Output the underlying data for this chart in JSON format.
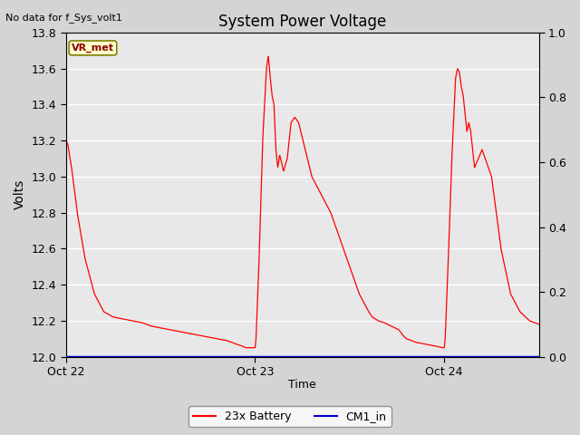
{
  "title": "System Power Voltage",
  "xlabel": "Time",
  "ylabel": "Volts",
  "top_left_text": "No data for f_Sys_volt1",
  "annotation_text": "VR_met",
  "ylim_left": [
    12.0,
    13.8
  ],
  "ylim_right": [
    0.0,
    1.0
  ],
  "yticks_left": [
    12.0,
    12.2,
    12.4,
    12.6,
    12.8,
    13.0,
    13.2,
    13.4,
    13.6,
    13.8
  ],
  "yticks_right": [
    0.0,
    0.2,
    0.4,
    0.6,
    0.8,
    1.0
  ],
  "xtick_labels": [
    "Oct 22",
    "Oct 23",
    "Oct 24"
  ],
  "xtick_pos": [
    0,
    1,
    2
  ],
  "xlim": [
    0,
    2.5
  ],
  "fig_bg_color": "#d4d4d4",
  "plot_bg_color": "#e8e8e8",
  "grid_color": "#ffffff",
  "line_color_battery": "#ff0000",
  "line_color_cm1": "#0000cc",
  "legend_battery": "23x Battery",
  "legend_cm1": "CM1_in",
  "figsize": [
    6.4,
    4.8
  ],
  "dpi": 100,
  "t_points": [
    0.0,
    0.01,
    0.03,
    0.06,
    0.1,
    0.15,
    0.2,
    0.25,
    0.3,
    0.35,
    0.4,
    0.45,
    0.5,
    0.55,
    0.6,
    0.65,
    0.7,
    0.75,
    0.8,
    0.85,
    0.9,
    0.93,
    0.95,
    0.97,
    0.99,
    1.0,
    1.005,
    1.02,
    1.04,
    1.06,
    1.07,
    1.08,
    1.09,
    1.1,
    1.11,
    1.12,
    1.13,
    1.14,
    1.15,
    1.17,
    1.19,
    1.21,
    1.23,
    1.3,
    1.4,
    1.5,
    1.55,
    1.6,
    1.62,
    1.65,
    1.68,
    1.7,
    1.72,
    1.74,
    1.76,
    1.78,
    1.8,
    1.85,
    1.9,
    1.95,
    1.99,
    2.0,
    2.005,
    2.02,
    2.04,
    2.06,
    2.07,
    2.08,
    2.09,
    2.1,
    2.11,
    2.12,
    2.13,
    2.14,
    2.15,
    2.16,
    2.18,
    2.2,
    2.25,
    2.3,
    2.35,
    2.4,
    2.45,
    2.5
  ],
  "v_points": [
    13.2,
    13.18,
    13.05,
    12.8,
    12.55,
    12.35,
    12.25,
    12.22,
    12.21,
    12.2,
    12.19,
    12.17,
    12.16,
    12.15,
    12.14,
    12.13,
    12.12,
    12.11,
    12.1,
    12.09,
    12.07,
    12.06,
    12.05,
    12.05,
    12.05,
    12.05,
    12.1,
    12.5,
    13.2,
    13.6,
    13.67,
    13.55,
    13.45,
    13.4,
    13.15,
    13.05,
    13.12,
    13.08,
    13.03,
    13.1,
    13.3,
    13.33,
    13.3,
    13.0,
    12.8,
    12.5,
    12.35,
    12.25,
    12.22,
    12.2,
    12.19,
    12.18,
    12.17,
    12.16,
    12.15,
    12.12,
    12.1,
    12.08,
    12.07,
    12.06,
    12.05,
    12.05,
    12.1,
    12.5,
    13.1,
    13.55,
    13.6,
    13.58,
    13.5,
    13.45,
    13.35,
    13.25,
    13.3,
    13.25,
    13.15,
    13.05,
    13.1,
    13.15,
    13.0,
    12.6,
    12.35,
    12.25,
    12.2,
    12.18
  ]
}
